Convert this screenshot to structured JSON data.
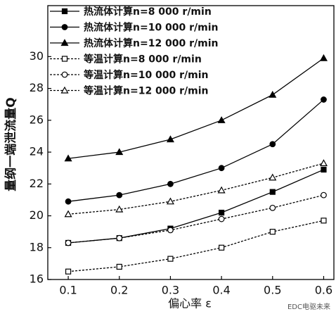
{
  "chart_data": {
    "type": "line",
    "x_label": "偏心率 ε",
    "y_label": "量纲一端泄流量Q",
    "x": [
      0.1,
      0.2,
      0.3,
      0.4,
      0.5,
      0.6
    ],
    "xlim": [
      0.06,
      0.62
    ],
    "xticks": [
      0.1,
      0.2,
      0.3,
      0.4,
      0.5,
      0.6
    ],
    "ylim": [
      16,
      33.2
    ],
    "yticks": [
      16,
      18,
      20,
      22,
      24,
      26,
      28,
      30
    ],
    "legend": "top-left",
    "watermark": "EDC电驱未来",
    "series": [
      {
        "name": "热流体计算n=8 000 r/min",
        "color": "#000000",
        "marker": "square",
        "filled": true,
        "dash": "solid",
        "values": [
          18.3,
          18.6,
          19.2,
          20.2,
          21.5,
          22.9
        ]
      },
      {
        "name": "热流体计算n=10 000 r/min",
        "color": "#000000",
        "marker": "circle",
        "filled": true,
        "dash": "solid",
        "values": [
          20.9,
          21.3,
          22.0,
          23.0,
          24.5,
          27.3
        ]
      },
      {
        "name": "热流体计算n=12 000 r/min",
        "color": "#000000",
        "marker": "triangle",
        "filled": true,
        "dash": "solid",
        "values": [
          23.6,
          24.0,
          24.8,
          26.0,
          27.6,
          29.9
        ]
      },
      {
        "name": "等温计算n=8 000 r/min",
        "color": "#000000",
        "marker": "square",
        "filled": false,
        "dash": "dotted",
        "values": [
          16.5,
          16.8,
          17.3,
          18.0,
          19.0,
          19.7
        ]
      },
      {
        "name": "等温计算n=10 000 r/min",
        "color": "#000000",
        "marker": "circle",
        "filled": false,
        "dash": "dotted",
        "values": [
          18.3,
          18.6,
          19.1,
          19.8,
          20.5,
          21.3
        ]
      },
      {
        "name": "等温计算n=12 000 r/min",
        "color": "#000000",
        "marker": "triangle",
        "filled": false,
        "dash": "dotted",
        "values": [
          20.1,
          20.4,
          20.9,
          21.6,
          22.4,
          23.3
        ]
      }
    ]
  }
}
